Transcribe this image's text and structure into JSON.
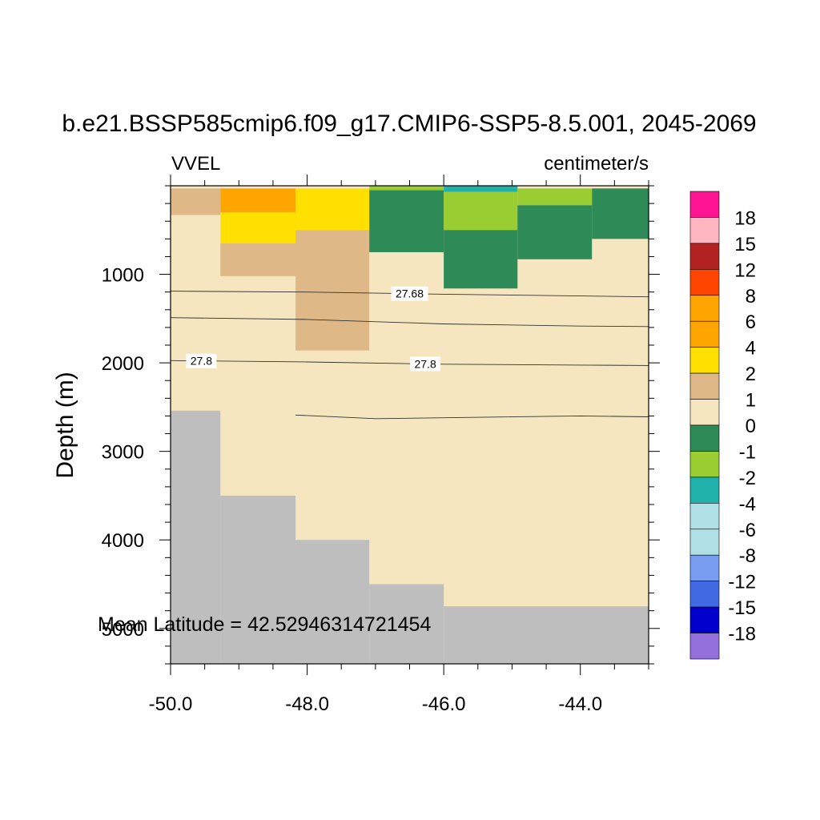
{
  "chart_data": {
    "type": "heatmap",
    "title": "b.e21.BSSP585cmip6.f09_g17.CMIP6-SSP5-8.5.001, 2045-2069",
    "variable_label": "VVEL",
    "units_label": "centimeter/s",
    "ylabel": "Depth (m)",
    "xlabel": "",
    "annotation": "Mean Latitude = 42.52946314721454",
    "xlim": [
      -50.0,
      -43.0
    ],
    "ylim_depth": [
      0,
      5400
    ],
    "y_reversed": true,
    "x_ticks": [
      "-50.0",
      "-48.0",
      "-46.0",
      "-44.0"
    ],
    "x_tick_values": [
      -50.0,
      -48.0,
      -46.0,
      -44.0
    ],
    "y_ticks": [
      "1000",
      "2000",
      "3000",
      "4000",
      "5000"
    ],
    "y_tick_values": [
      1000,
      2000,
      3000,
      4000,
      5000
    ],
    "colorbar_labels": [
      "18",
      "15",
      "12",
      "8",
      "6",
      "4",
      "2",
      "1",
      "0",
      "-1",
      "-2",
      "-4",
      "-6",
      "-8",
      "-12",
      "-15",
      "-18"
    ],
    "colorbar_colors": [
      "#ff1493",
      "#ffb6c1",
      "#b22222",
      "#ff4500",
      "#ffa500",
      "#ffa500",
      "#ffe000",
      "#deb887",
      "#f5e6bf",
      "#2e8b57",
      "#9acd32",
      "#20b2aa",
      "#b0e0e6",
      "#b0e0e6",
      "#779cf0",
      "#4169e1",
      "#0000cd",
      "#9370db"
    ],
    "cells": [
      {
        "x0": -50.0,
        "x1": -49.27,
        "y0": 30,
        "y1": 330,
        "color": "#deb887"
      },
      {
        "x0": -49.27,
        "x1": -48.17,
        "y0": 30,
        "y1": 300,
        "color": "#ffa500"
      },
      {
        "x0": -49.27,
        "x1": -48.17,
        "y0": 300,
        "y1": 650,
        "color": "#ffe000"
      },
      {
        "x0": -49.27,
        "x1": -48.17,
        "y0": 650,
        "y1": 1020,
        "color": "#deb887"
      },
      {
        "x0": -48.17,
        "x1": -47.09,
        "y0": 30,
        "y1": 500,
        "color": "#ffe000"
      },
      {
        "x0": -48.17,
        "x1": -47.09,
        "y0": 500,
        "y1": 1860,
        "color": "#deb887"
      },
      {
        "x0": -47.09,
        "x1": -46.0,
        "y0": 0,
        "y1": 50,
        "color": "#9acd32"
      },
      {
        "x0": -47.09,
        "x1": -46.0,
        "y0": 50,
        "y1": 750,
        "color": "#2e8b57"
      },
      {
        "x0": -46.0,
        "x1": -44.92,
        "y0": 0,
        "y1": 70,
        "color": "#20b2aa"
      },
      {
        "x0": -46.0,
        "x1": -44.92,
        "y0": 70,
        "y1": 500,
        "color": "#9acd32"
      },
      {
        "x0": -46.0,
        "x1": -44.92,
        "y0": 500,
        "y1": 1160,
        "color": "#2e8b57"
      },
      {
        "x0": -44.92,
        "x1": -43.83,
        "y0": 30,
        "y1": 220,
        "color": "#9acd32"
      },
      {
        "x0": -44.92,
        "x1": -43.83,
        "y0": 220,
        "y1": 830,
        "color": "#2e8b57"
      },
      {
        "x0": -43.83,
        "x1": -43.0,
        "y0": 30,
        "y1": 600,
        "color": "#2e8b57"
      }
    ],
    "background_color": "#f5e6bf",
    "land_color": "#bebebe",
    "bathymetry": [
      {
        "x0": -50.0,
        "x1": -49.27,
        "depth": 2540
      },
      {
        "x0": -49.27,
        "x1": -48.17,
        "depth": 3500
      },
      {
        "x0": -48.17,
        "x1": -47.09,
        "depth": 4000
      },
      {
        "x0": -47.09,
        "x1": -46.0,
        "depth": 4500
      },
      {
        "x0": -46.0,
        "x1": -43.0,
        "depth": 4750
      }
    ],
    "contours": [
      {
        "points": [
          [
            -50.0,
            1190
          ],
          [
            -48.0,
            1200
          ],
          [
            -46.0,
            1225
          ],
          [
            -44.0,
            1245
          ],
          [
            -43.0,
            1255
          ]
        ],
        "label": "27.68",
        "label_x": -46.5
      },
      {
        "points": [
          [
            -50.0,
            1490
          ],
          [
            -48.0,
            1510
          ],
          [
            -46.0,
            1560
          ],
          [
            -44.0,
            1585
          ],
          [
            -43.0,
            1590
          ]
        ],
        "label": "",
        "label_x": null
      },
      {
        "points": [
          [
            -50.0,
            1975
          ],
          [
            -48.0,
            1990
          ],
          [
            -46.0,
            2015
          ],
          [
            -44.0,
            2025
          ],
          [
            -43.0,
            2030
          ]
        ],
        "label": "27.8",
        "label_x": -46.27,
        "label2": "27.8",
        "label2_x": -49.55
      },
      {
        "points": [
          [
            -48.17,
            2590
          ],
          [
            -47.0,
            2630
          ],
          [
            -46.0,
            2620
          ],
          [
            -44.0,
            2600
          ],
          [
            -43.0,
            2610
          ]
        ],
        "label": "",
        "label_x": null
      }
    ]
  }
}
